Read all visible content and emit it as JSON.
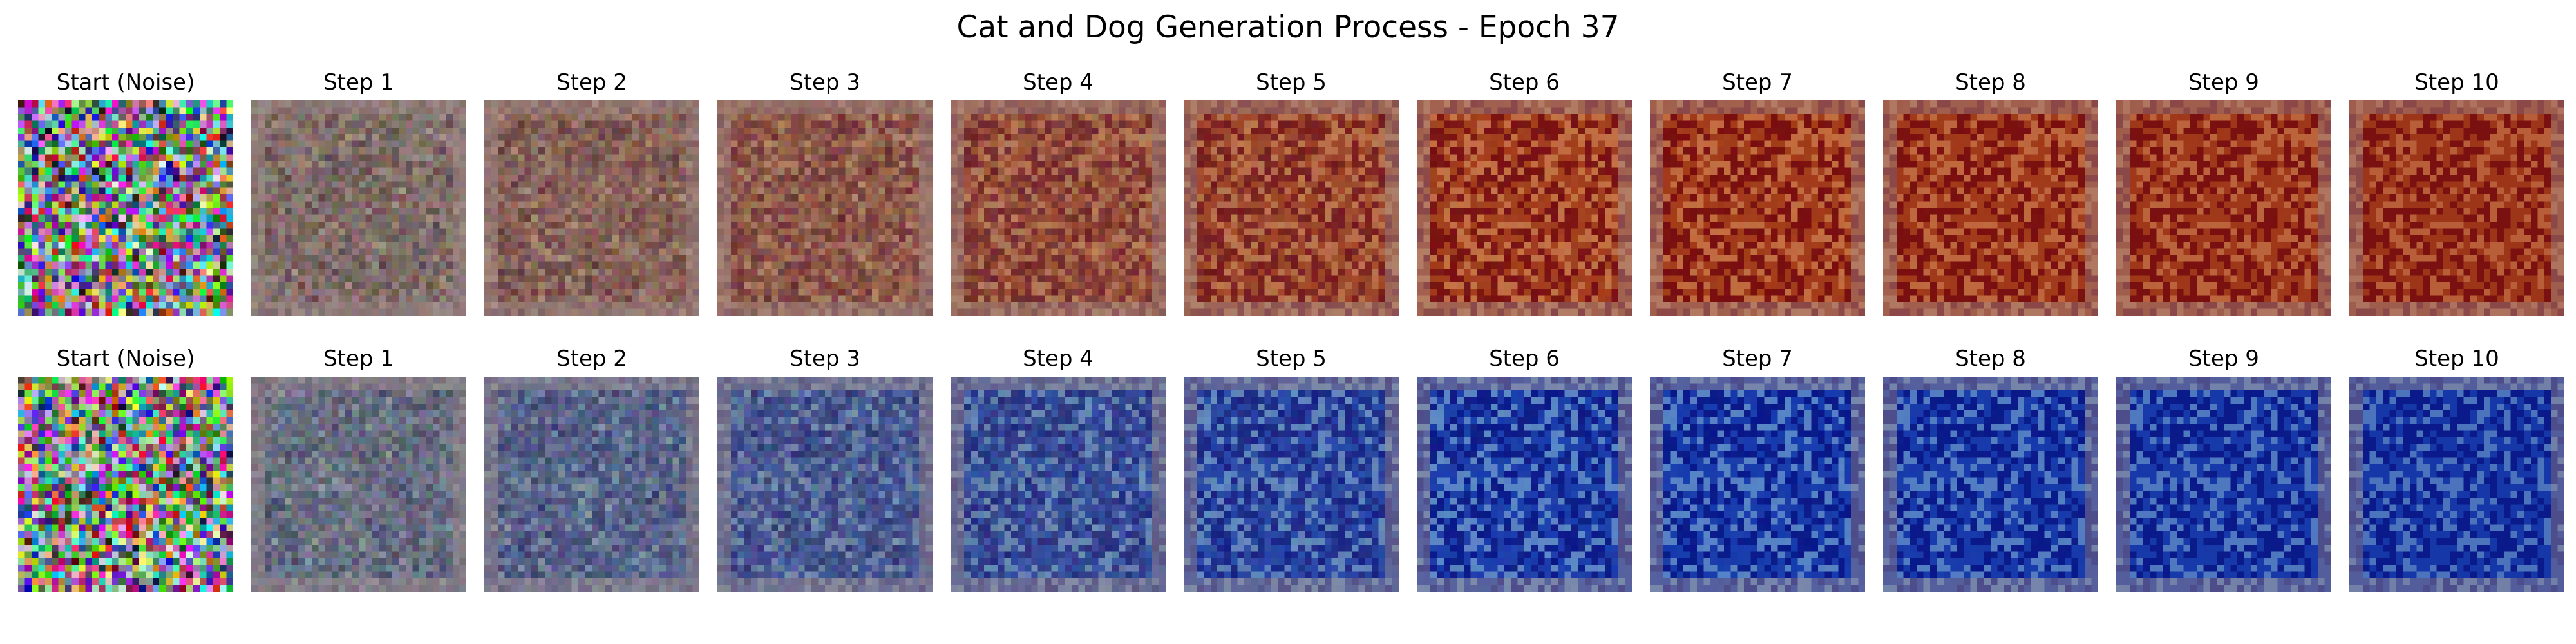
{
  "figure": {
    "title": "Cat and Dog Generation Process - Epoch 37"
  },
  "rows": [
    {
      "theme": "red",
      "colors": {
        "end_tone": "#7a1010",
        "mid_tone": "#b04a1e",
        "light_tone": "#d98a50"
      },
      "panels": [
        {
          "label": "Start (Noise)",
          "kind": "noise"
        },
        {
          "label": "Step 1",
          "denoise_level": 0.1
        },
        {
          "label": "Step 2",
          "denoise_level": 0.2
        },
        {
          "label": "Step 3",
          "denoise_level": 0.3
        },
        {
          "label": "Step 4",
          "denoise_level": 0.4
        },
        {
          "label": "Step 5",
          "denoise_level": 0.5
        },
        {
          "label": "Step 6",
          "denoise_level": 0.6
        },
        {
          "label": "Step 7",
          "denoise_level": 0.7
        },
        {
          "label": "Step 8",
          "denoise_level": 0.8
        },
        {
          "label": "Step 9",
          "denoise_level": 0.9
        },
        {
          "label": "Step 10",
          "denoise_level": 1.0
        }
      ]
    },
    {
      "theme": "blue",
      "colors": {
        "end_tone": "#0a1a8a",
        "mid_tone": "#1d47b8",
        "light_tone": "#6fa4d8"
      },
      "panels": [
        {
          "label": "Start (Noise)",
          "kind": "noise"
        },
        {
          "label": "Step 1",
          "denoise_level": 0.1
        },
        {
          "label": "Step 2",
          "denoise_level": 0.2
        },
        {
          "label": "Step 3",
          "denoise_level": 0.3
        },
        {
          "label": "Step 4",
          "denoise_level": 0.4
        },
        {
          "label": "Step 5",
          "denoise_level": 0.5
        },
        {
          "label": "Step 6",
          "denoise_level": 0.6
        },
        {
          "label": "Step 7",
          "denoise_level": 0.7
        },
        {
          "label": "Step 8",
          "denoise_level": 0.8
        },
        {
          "label": "Step 9",
          "denoise_level": 0.9
        },
        {
          "label": "Step 10",
          "denoise_level": 1.0
        }
      ]
    }
  ]
}
